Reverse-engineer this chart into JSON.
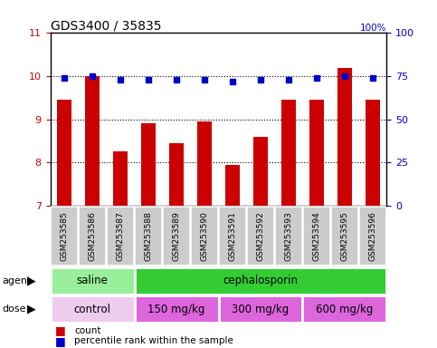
{
  "title": "GDS3400 / 35835",
  "categories": [
    "GSM253585",
    "GSM253586",
    "GSM253587",
    "GSM253588",
    "GSM253589",
    "GSM253590",
    "GSM253591",
    "GSM253592",
    "GSM253593",
    "GSM253594",
    "GSM253595",
    "GSM253596"
  ],
  "bar_values": [
    9.45,
    10.0,
    8.25,
    8.9,
    8.45,
    8.95,
    7.95,
    8.6,
    9.45,
    9.45,
    10.2,
    9.45
  ],
  "dot_values": [
    74,
    75,
    73,
    73,
    73,
    73,
    72,
    73,
    73,
    74,
    75,
    74
  ],
  "ylim_left": [
    7,
    11
  ],
  "ylim_right": [
    0,
    100
  ],
  "yticks_left": [
    7,
    8,
    9,
    10,
    11
  ],
  "yticks_right": [
    0,
    25,
    50,
    75,
    100
  ],
  "bar_color": "#CC0000",
  "dot_color": "#0000CC",
  "agent_labels": [
    {
      "text": "saline",
      "start": 0,
      "end": 3,
      "color": "#99EE99"
    },
    {
      "text": "cephalosporin",
      "start": 3,
      "end": 12,
      "color": "#33CC33"
    }
  ],
  "dose_labels": [
    {
      "text": "control",
      "start": 0,
      "end": 3,
      "color": "#EECCEE"
    },
    {
      "text": "150 mg/kg",
      "start": 3,
      "end": 6,
      "color": "#DD66DD"
    },
    {
      "text": "300 mg/kg",
      "start": 6,
      "end": 9,
      "color": "#DD66DD"
    },
    {
      "text": "600 mg/kg",
      "start": 9,
      "end": 12,
      "color": "#DD66DD"
    }
  ],
  "ylabel_left_color": "#CC0000",
  "ylabel_right_color": "#0000CC",
  "tick_bg_color": "#CCCCCC",
  "bar_width": 0.5
}
